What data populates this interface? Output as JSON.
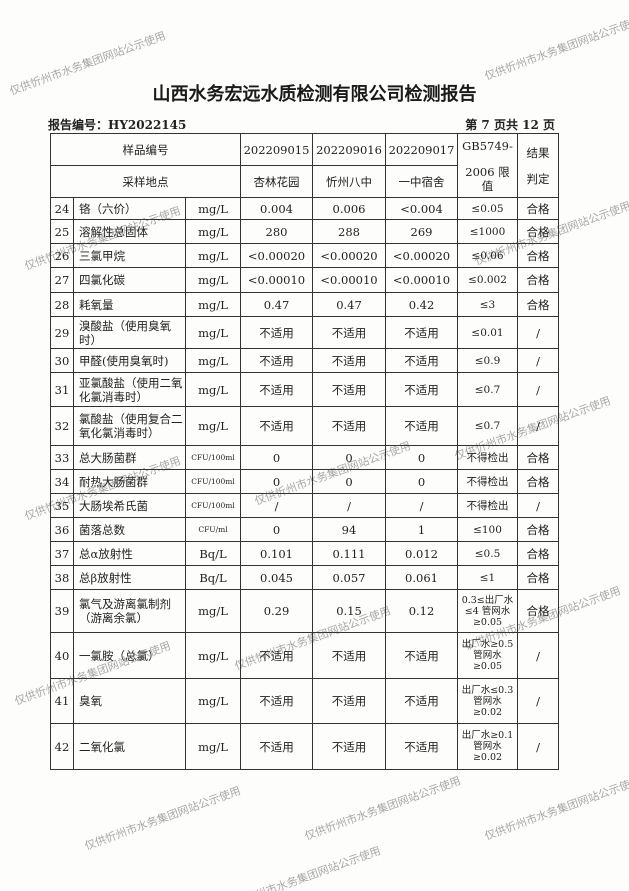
{
  "title": "山西水务宏远水质检测有限公司检测报告",
  "report_no": "报告编号：HY2022145",
  "page": "第 7 页共 12 页",
  "watermark": "仅供忻州市水务集团网站公示使用",
  "header": {
    "sample_no_label": "样品编号",
    "site_label": "采样地点",
    "samples": [
      "202209015",
      "202209016",
      "202209017"
    ],
    "sites": [
      "杏林花园",
      "忻州八中",
      "一中宿舍"
    ],
    "limit_label_1": "GB5749-",
    "limit_label_2": "2006 限值",
    "result_label_1": "结果",
    "result_label_2": "判定"
  },
  "rows": [
    {
      "no": "24",
      "name": "铬（六价）",
      "unit": "mg/L",
      "v": [
        "0.004",
        "0.006",
        "<0.004"
      ],
      "limit": "≤0.05",
      "result": "合格"
    },
    {
      "no": "25",
      "name": "溶解性总固体",
      "unit": "mg/L",
      "v": [
        "280",
        "288",
        "269"
      ],
      "limit": "≤1000",
      "result": "合格"
    },
    {
      "no": "26",
      "name": "三氯甲烷",
      "unit": "mg/L",
      "v": [
        "<0.00020",
        "<0.00020",
        "<0.00020"
      ],
      "limit": "≤0.06",
      "result": "合格"
    },
    {
      "no": "27",
      "name": "四氯化碳",
      "unit": "mg/L",
      "v": [
        "<0.00010",
        "<0.00010",
        "<0.00010"
      ],
      "limit": "≤0.002",
      "result": "合格"
    },
    {
      "no": "28",
      "name": "耗氧量",
      "unit": "mg/L",
      "v": [
        "0.47",
        "0.47",
        "0.42"
      ],
      "limit": "≤3",
      "result": "合格"
    },
    {
      "no": "29",
      "name": "溴酸盐（使用臭氧时）",
      "unit": "mg/L",
      "v": [
        "不适用",
        "不适用",
        "不适用"
      ],
      "limit": "≤0.01",
      "result": "/"
    },
    {
      "no": "30",
      "name": "甲醛(使用臭氧时)",
      "unit": "mg/L",
      "v": [
        "不适用",
        "不适用",
        "不适用"
      ],
      "limit": "≤0.9",
      "result": "/"
    },
    {
      "no": "31",
      "name": "亚氯酸盐（使用二氧化氯消毒时）",
      "unit": "mg/L",
      "v": [
        "不适用",
        "不适用",
        "不适用"
      ],
      "limit": "≤0.7",
      "result": "/"
    },
    {
      "no": "32",
      "name": "氯酸盐（使用复合二氧化氯消毒时）",
      "unit": "mg/L",
      "v": [
        "不适用",
        "不适用",
        "不适用"
      ],
      "limit": "≤0.7",
      "result": "/"
    },
    {
      "no": "33",
      "name": "总大肠菌群",
      "unit": "CFU/100ml",
      "v": [
        "0",
        "0",
        "0"
      ],
      "limit": "不得检出",
      "result": "合格"
    },
    {
      "no": "34",
      "name": "耐热大肠菌群",
      "unit": "CFU/100ml",
      "v": [
        "0",
        "0",
        "0"
      ],
      "limit": "不得检出",
      "result": "合格"
    },
    {
      "no": "35",
      "name": "大肠埃希氏菌",
      "unit": "CFU/100ml",
      "v": [
        "/",
        "/",
        "/"
      ],
      "limit": "不得检出",
      "result": "/"
    },
    {
      "no": "36",
      "name": "菌落总数",
      "unit": "CFU/ml",
      "v": [
        "0",
        "94",
        "1"
      ],
      "limit": "≤100",
      "result": "合格"
    },
    {
      "no": "37",
      "name": "总α放射性",
      "unit": "Bq/L",
      "v": [
        "0.101",
        "0.111",
        "0.012"
      ],
      "limit": "≤0.5",
      "result": "合格"
    },
    {
      "no": "38",
      "name": "总β放射性",
      "unit": "Bq/L",
      "v": [
        "0.045",
        "0.057",
        "0.061"
      ],
      "limit": "≤1",
      "result": "合格"
    },
    {
      "no": "39",
      "name": "氯气及游离氯制剂（游离余氯）",
      "unit": "mg/L",
      "v": [
        "0.29",
        "0.15",
        "0.12"
      ],
      "limit": "0.3≤出厂水≤4 管网水≥0.05",
      "result": "合格"
    },
    {
      "no": "40",
      "name": "一氯胺（总氯）",
      "unit": "mg/L",
      "v": [
        "不适用",
        "不适用",
        "不适用"
      ],
      "limit": "出厂水≥0.5 管网水≥0.05",
      "result": "/"
    },
    {
      "no": "41",
      "name": "臭氧",
      "unit": "mg/L",
      "v": [
        "不适用",
        "不适用",
        "不适用"
      ],
      "limit": "出厂水≤0.3 管网水≥0.02",
      "result": "/"
    },
    {
      "no": "42",
      "name": "二氧化氯",
      "unit": "mg/L",
      "v": [
        "不适用",
        "不适用",
        "不适用"
      ],
      "limit": "出厂水≥0.1 管网水≥0.02",
      "result": "/"
    }
  ]
}
